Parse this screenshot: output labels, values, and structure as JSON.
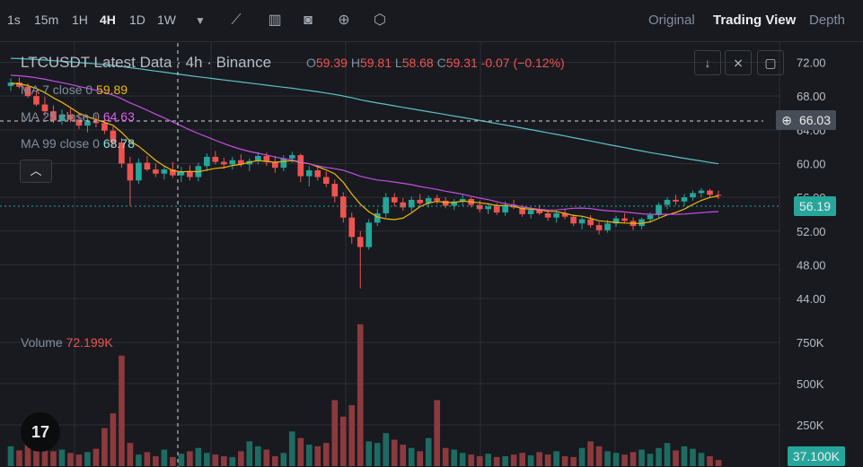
{
  "toolbar": {
    "timeframes": [
      "1s",
      "15m",
      "1H",
      "4H",
      "1D",
      "1W"
    ],
    "active_timeframe": "4H",
    "views": [
      "Original",
      "Trading View",
      "Depth"
    ],
    "active_view": "Trading View"
  },
  "legend": {
    "title": "LTCUSDT Latest Data · 4h · Binance",
    "open_label": "O",
    "open": "59.39",
    "high_label": "H",
    "high": "59.81",
    "low_label": "L",
    "low": "58.68",
    "close_label": "C",
    "close": "59.31",
    "change": "-0.07 (−0.12%)",
    "ma7_label": "MA 7 close 0",
    "ma7": "59.89",
    "ma25_label": "MA 25 close 0",
    "ma25": "64.63",
    "ma99_label": "MA 99 close 0",
    "ma99": "68.78",
    "volume_label": "Volume",
    "volume": "72.199K"
  },
  "crosshair": {
    "price_label": "66.03"
  },
  "last_price_tag": "56.19",
  "last_volume_tag": "37.100K",
  "logo_text": "17",
  "colors": {
    "up": "#26a69a",
    "down": "#ef5350",
    "ma7": "#f0b90b",
    "ma25": "#c74ee0",
    "ma99": "#5bc2c6",
    "bg": "#181a20"
  },
  "chart_data": {
    "type": "candlestick",
    "y_axis_ticks": [
      "72.00",
      "68.00",
      "64.00",
      "60.00",
      "56.00",
      "52.00",
      "48.00",
      "44.00"
    ],
    "ylim": [
      40.5,
      74.5
    ],
    "volume_axis_ticks": [
      "750K",
      "500K",
      "250K"
    ],
    "volume_max": 1000000,
    "series": {
      "ohlc": [
        [
          69.2,
          70.1,
          68.6,
          69.6
        ],
        [
          69.6,
          70.2,
          68.9,
          69.1
        ],
        [
          69.1,
          69.5,
          67.8,
          68.0
        ],
        [
          68.0,
          68.6,
          66.8,
          67.0
        ],
        [
          67.0,
          67.9,
          65.6,
          66.2
        ],
        [
          66.2,
          66.9,
          64.8,
          65.1
        ],
        [
          65.1,
          66.4,
          64.6,
          65.8
        ],
        [
          65.8,
          66.5,
          64.9,
          65.2
        ],
        [
          65.2,
          65.9,
          64.1,
          64.5
        ],
        [
          64.5,
          65.6,
          63.7,
          65.0
        ],
        [
          65.0,
          65.8,
          64.3,
          64.8
        ],
        [
          64.8,
          65.2,
          63.5,
          63.9
        ],
        [
          63.9,
          64.4,
          62.0,
          62.5
        ],
        [
          62.5,
          63.0,
          59.5,
          60.0
        ],
        [
          60.0,
          60.8,
          55.0,
          58.0
        ],
        [
          58.0,
          60.6,
          57.6,
          60.1
        ],
        [
          60.1,
          60.9,
          59.1,
          59.3
        ],
        [
          59.3,
          60.0,
          58.4,
          58.8
        ],
        [
          58.8,
          59.6,
          58.1,
          59.3
        ],
        [
          59.3,
          60.2,
          58.3,
          58.6
        ],
        [
          58.6,
          59.6,
          57.8,
          59.0
        ],
        [
          59.0,
          59.8,
          58.0,
          58.4
        ],
        [
          58.4,
          60.1,
          57.9,
          59.7
        ],
        [
          59.7,
          61.2,
          59.1,
          60.8
        ],
        [
          60.8,
          61.5,
          59.9,
          60.2
        ],
        [
          60.2,
          60.7,
          59.4,
          59.9
        ],
        [
          59.9,
          60.8,
          59.3,
          60.4
        ],
        [
          60.4,
          61.1,
          59.6,
          59.9
        ],
        [
          59.9,
          60.6,
          59.1,
          60.3
        ],
        [
          60.3,
          61.4,
          59.9,
          60.9
        ],
        [
          60.9,
          61.3,
          59.7,
          60.2
        ],
        [
          60.2,
          60.9,
          58.9,
          59.5
        ],
        [
          59.5,
          61.0,
          59.1,
          60.6
        ],
        [
          60.6,
          61.4,
          60.1,
          61.0
        ],
        [
          61.0,
          61.2,
          57.8,
          58.5
        ],
        [
          58.5,
          59.7,
          57.3,
          59.2
        ],
        [
          59.2,
          59.8,
          58.0,
          58.4
        ],
        [
          58.4,
          59.1,
          57.2,
          57.6
        ],
        [
          57.6,
          58.1,
          55.4,
          56.1
        ],
        [
          56.1,
          56.6,
          53.0,
          53.6
        ],
        [
          53.6,
          54.2,
          50.5,
          51.3
        ],
        [
          51.3,
          52.0,
          45.2,
          50.1
        ],
        [
          50.1,
          53.4,
          49.8,
          53.0
        ],
        [
          53.0,
          54.6,
          52.6,
          54.1
        ],
        [
          54.1,
          56.5,
          53.6,
          56.0
        ],
        [
          56.0,
          56.5,
          54.9,
          55.4
        ],
        [
          55.4,
          55.9,
          54.4,
          54.8
        ],
        [
          54.8,
          56.1,
          54.3,
          55.7
        ],
        [
          55.7,
          56.4,
          55.0,
          55.3
        ],
        [
          55.3,
          56.2,
          54.8,
          55.9
        ],
        [
          55.9,
          56.3,
          55.2,
          55.6
        ],
        [
          55.6,
          56.0,
          54.7,
          55.0
        ],
        [
          55.0,
          55.8,
          54.5,
          55.5
        ],
        [
          55.5,
          56.3,
          55.0,
          55.8
        ],
        [
          55.8,
          56.0,
          54.8,
          55.1
        ],
        [
          55.1,
          55.6,
          54.2,
          54.6
        ],
        [
          54.6,
          55.2,
          54.0,
          54.9
        ],
        [
          54.9,
          55.3,
          53.9,
          54.2
        ],
        [
          54.2,
          55.5,
          53.8,
          55.1
        ],
        [
          55.1,
          55.7,
          54.6,
          54.8
        ],
        [
          54.8,
          55.1,
          53.7,
          54.0
        ],
        [
          54.0,
          54.8,
          53.5,
          54.5
        ],
        [
          54.5,
          55.1,
          53.9,
          54.1
        ],
        [
          54.1,
          54.5,
          53.2,
          53.6
        ],
        [
          53.6,
          54.4,
          53.0,
          54.1
        ],
        [
          54.1,
          54.6,
          53.4,
          53.7
        ],
        [
          53.7,
          54.0,
          52.6,
          52.9
        ],
        [
          52.9,
          53.7,
          52.2,
          53.4
        ],
        [
          53.4,
          53.9,
          52.4,
          52.7
        ],
        [
          52.7,
          53.1,
          51.6,
          52.1
        ],
        [
          52.1,
          53.3,
          51.8,
          52.9
        ],
        [
          52.9,
          53.8,
          52.5,
          53.5
        ],
        [
          53.5,
          54.1,
          52.9,
          53.2
        ],
        [
          53.2,
          53.6,
          52.1,
          52.6
        ],
        [
          52.6,
          53.6,
          52.2,
          53.4
        ],
        [
          53.4,
          54.2,
          53.0,
          53.9
        ],
        [
          53.9,
          55.4,
          53.6,
          55.1
        ],
        [
          55.1,
          56.0,
          54.6,
          55.7
        ],
        [
          55.7,
          56.3,
          55.1,
          55.5
        ],
        [
          55.5,
          56.4,
          55.0,
          56.0
        ],
        [
          56.0,
          56.8,
          55.6,
          56.5
        ],
        [
          56.5,
          57.1,
          56.0,
          56.8
        ],
        [
          56.8,
          57.0,
          55.9,
          56.3
        ],
        [
          56.3,
          56.8,
          55.8,
          56.19
        ]
      ],
      "volume": [
        120000,
        95000,
        140000,
        110000,
        160000,
        90000,
        100000,
        80000,
        70000,
        85000,
        105000,
        230000,
        320000,
        670000,
        140000,
        70000,
        85000,
        60000,
        100000,
        55000,
        75000,
        90000,
        110000,
        80000,
        70000,
        60000,
        55000,
        90000,
        150000,
        120000,
        100000,
        60000,
        80000,
        210000,
        170000,
        130000,
        120000,
        140000,
        400000,
        300000,
        370000,
        860000,
        150000,
        140000,
        200000,
        160000,
        130000,
        110000,
        90000,
        170000,
        400000,
        110000,
        100000,
        80000,
        70000,
        60000,
        75000,
        55000,
        60000,
        70000,
        80000,
        65000,
        85000,
        70000,
        90000,
        60000,
        55000,
        110000,
        150000,
        120000,
        90000,
        80000,
        70000,
        85000,
        100000,
        75000,
        110000,
        140000,
        95000,
        120000,
        105000,
        80000,
        60000,
        37100
      ]
    }
  }
}
